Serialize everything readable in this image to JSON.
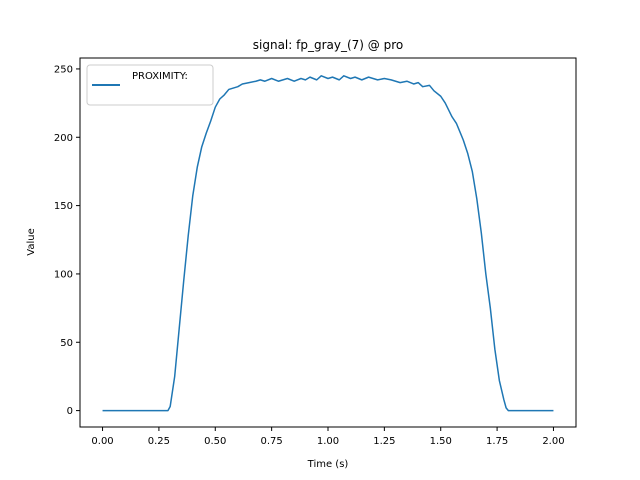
{
  "chart_data": {
    "type": "line",
    "title": "signal: fp_gray_(7) @ pro",
    "xlabel": "Time (s)",
    "ylabel": "Value",
    "xlim": [
      -0.1,
      2.1
    ],
    "ylim": [
      -12,
      258
    ],
    "x_ticks": [
      0.0,
      0.25,
      0.5,
      0.75,
      1.0,
      1.25,
      1.5,
      1.75,
      2.0
    ],
    "x_tick_labels": [
      "0.00",
      "0.25",
      "0.50",
      "0.75",
      "1.00",
      "1.25",
      "1.50",
      "1.75",
      "2.00"
    ],
    "y_ticks": [
      0,
      50,
      100,
      150,
      200,
      250
    ],
    "y_tick_labels": [
      "0",
      "50",
      "100",
      "150",
      "200",
      "250"
    ],
    "grid": false,
    "legend_position": "top-left",
    "color": "#1f77b4",
    "series": [
      {
        "name": "PROXIMITY:",
        "x": [
          0.0,
          0.05,
          0.1,
          0.15,
          0.2,
          0.25,
          0.29,
          0.3,
          0.32,
          0.34,
          0.36,
          0.38,
          0.4,
          0.42,
          0.44,
          0.46,
          0.48,
          0.5,
          0.52,
          0.54,
          0.56,
          0.58,
          0.6,
          0.62,
          0.65,
          0.68,
          0.7,
          0.72,
          0.75,
          0.78,
          0.8,
          0.82,
          0.85,
          0.88,
          0.9,
          0.92,
          0.95,
          0.97,
          1.0,
          1.02,
          1.05,
          1.07,
          1.1,
          1.12,
          1.15,
          1.18,
          1.2,
          1.22,
          1.25,
          1.28,
          1.3,
          1.32,
          1.35,
          1.38,
          1.4,
          1.42,
          1.45,
          1.47,
          1.5,
          1.52,
          1.55,
          1.57,
          1.6,
          1.62,
          1.64,
          1.66,
          1.68,
          1.7,
          1.72,
          1.74,
          1.76,
          1.78,
          1.79,
          1.8,
          1.82,
          1.85,
          1.9,
          1.95,
          2.0
        ],
        "y": [
          0,
          0,
          0,
          0,
          0,
          0,
          0,
          3,
          25,
          60,
          95,
          128,
          157,
          178,
          193,
          203,
          212,
          222,
          228,
          231,
          235,
          236,
          237,
          239,
          240,
          241,
          242,
          241,
          243,
          241,
          242,
          243,
          241,
          243,
          242,
          244,
          242,
          245,
          243,
          244,
          242,
          245,
          243,
          244,
          242,
          244,
          243,
          242,
          243,
          242,
          241,
          240,
          241,
          239,
          240,
          237,
          238,
          234,
          230,
          225,
          215,
          210,
          198,
          188,
          175,
          155,
          130,
          100,
          75,
          45,
          22,
          8,
          2,
          0,
          0,
          0,
          0,
          0,
          0
        ]
      }
    ]
  }
}
